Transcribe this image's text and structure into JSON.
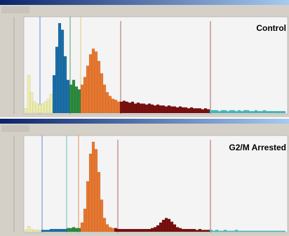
{
  "panels": [
    {
      "label": "Control",
      "segments": [
        {
          "color": "#eeeeb0",
          "counts": [
            5,
            40,
            22,
            12,
            10,
            9,
            10,
            12,
            15,
            20
          ]
        },
        {
          "color": "#1a6fa8",
          "counts": [
            40,
            70,
            95,
            88,
            60,
            35
          ]
        },
        {
          "color": "#2e8b3e",
          "counts": [
            30,
            35,
            28,
            25
          ]
        },
        {
          "color": "#e87830",
          "counts": [
            30,
            38,
            50,
            62,
            68,
            65,
            55,
            42,
            30,
            22,
            18,
            15,
            14,
            12
          ]
        },
        {
          "color": "#7a1010",
          "counts": [
            12,
            13,
            12,
            11,
            12,
            10,
            11,
            10,
            10,
            9,
            10,
            9,
            8,
            9,
            8,
            8,
            7,
            8,
            7,
            7,
            6,
            7,
            6,
            6,
            5,
            6,
            5,
            5,
            5,
            4,
            5,
            4
          ]
        },
        {
          "color": "#40c0c0",
          "counts": [
            3,
            3,
            3,
            2,
            3,
            3,
            2,
            3,
            3,
            2,
            3,
            2,
            3,
            3,
            2,
            2,
            3,
            2,
            2,
            3,
            2,
            2,
            2,
            2,
            2,
            2,
            2
          ]
        }
      ]
    },
    {
      "label": "G2/M Arrested",
      "segments": [
        {
          "color": "#eeeeb0",
          "counts": [
            2,
            6,
            3,
            2,
            2,
            2
          ]
        },
        {
          "color": "#1a6fa8",
          "counts": [
            2,
            2,
            2,
            3,
            3,
            3,
            3,
            3,
            3
          ]
        },
        {
          "color": "#2e8b3e",
          "counts": [
            4,
            4,
            5,
            4,
            4
          ]
        },
        {
          "color": "#e87830",
          "counts": [
            10,
            25,
            55,
            85,
            98,
            90,
            65,
            35,
            15,
            8,
            5,
            4
          ]
        },
        {
          "color": "#7a1010",
          "counts": [
            4,
            3,
            3,
            3,
            3,
            3,
            3,
            3,
            3,
            3,
            3,
            3,
            3,
            4,
            5,
            7,
            10,
            13,
            15,
            14,
            11,
            8,
            5,
            4,
            3,
            3,
            3,
            3,
            3,
            2,
            3,
            2,
            2,
            2
          ]
        },
        {
          "color": "#40c0c0",
          "counts": [
            2,
            1,
            2,
            1,
            1,
            2,
            1,
            1,
            1,
            2,
            1,
            1,
            1,
            1,
            1,
            1,
            1,
            1,
            1,
            1,
            1,
            1,
            1,
            1,
            1,
            1,
            1
          ]
        }
      ]
    }
  ]
}
